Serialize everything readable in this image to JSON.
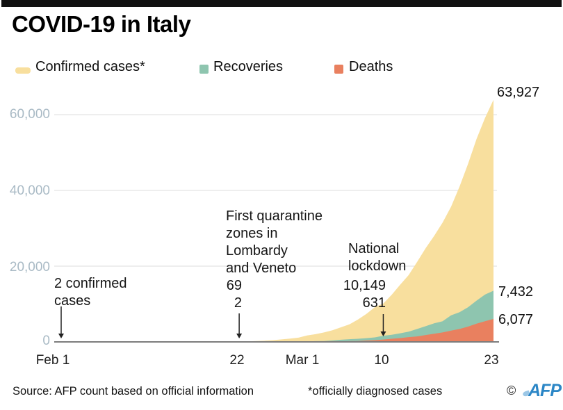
{
  "header": {
    "title": "COVID-19 in Italy"
  },
  "legend": {
    "confirmed": {
      "label": "Confirmed cases*",
      "color": "#f8df9e"
    },
    "recoveries": {
      "label": "Recoveries",
      "color": "#8ec5af"
    },
    "deaths": {
      "label": "Deaths",
      "color": "#e9805f"
    }
  },
  "y_axis": {
    "ticks": {
      "t60": "60,000",
      "t40": "40,000",
      "t20": "20,000",
      "t0": "0"
    }
  },
  "x_axis": {
    "ticks": {
      "feb1": "Feb 1",
      "feb22": "22",
      "mar1": "Mar 1",
      "mar10": "10",
      "mar23": "23"
    }
  },
  "annotations": [
    {
      "day": 0,
      "lines": {
        "l1": "2 confirmed",
        "l2": "cases"
      },
      "values": {}
    },
    {
      "day": 21,
      "lines": {
        "l1": "First quarantine",
        "l2": "zones in",
        "l3": "Lombardy",
        "l4": "and Veneto"
      },
      "values": {
        "confirmed": "69",
        "deaths": "2"
      }
    },
    {
      "day": 38,
      "lines": {
        "l1": "National",
        "l2": "lockdown"
      },
      "values": {
        "confirmed": "10,149",
        "deaths": "631"
      }
    }
  ],
  "end_labels": {
    "confirmed": "63,927",
    "recoveries": "7,432",
    "deaths": "6,077"
  },
  "footer": {
    "source": "Source: AFP count based on official information",
    "note": "*officially diagnosed cases",
    "copyright": "©",
    "logo": "AFP"
  },
  "chart_data": {
    "type": "area",
    "title": "COVID-19 in Italy",
    "x_unit": "daily, Feb 1 2020 to Mar 23 2020",
    "x_tick_days": [
      0,
      21,
      29,
      38,
      51
    ],
    "x_tick_labels": [
      "Feb 1",
      "22",
      "Mar 1",
      "10",
      "23"
    ],
    "ylim": [
      0,
      65000
    ],
    "y_ticks": [
      0,
      20000,
      40000,
      60000
    ],
    "grid": true,
    "stacking": "deaths at bottom, recoveries stacked on deaths, confirmed cases drawn as total envelope",
    "series": [
      {
        "name": "Confirmed cases*",
        "color": "#f8df9e",
        "values": [
          2,
          2,
          2,
          2,
          2,
          3,
          3,
          3,
          3,
          3,
          3,
          3,
          3,
          3,
          3,
          3,
          3,
          3,
          3,
          4,
          21,
          69,
          152,
          229,
          322,
          453,
          655,
          888,
          1128,
          1694,
          2036,
          2502,
          3089,
          3858,
          4636,
          5883,
          7375,
          9172,
          10149,
          12462,
          15113,
          17660,
          21157,
          24747,
          27980,
          31506,
          35713,
          41035,
          47021,
          53578,
          59138,
          63927
        ]
      },
      {
        "name": "Recoveries",
        "color": "#8ec5af",
        "values": [
          0,
          0,
          0,
          0,
          0,
          0,
          0,
          0,
          0,
          0,
          0,
          0,
          0,
          0,
          0,
          0,
          0,
          0,
          0,
          0,
          0,
          1,
          1,
          1,
          1,
          3,
          45,
          46,
          50,
          83,
          149,
          160,
          276,
          414,
          523,
          589,
          622,
          724,
          1004,
          1045,
          1258,
          1439,
          1966,
          2335,
          2749,
          2941,
          4025,
          4440,
          5129,
          6072,
          7024,
          7432
        ]
      },
      {
        "name": "Deaths",
        "color": "#e9805f",
        "values": [
          0,
          0,
          0,
          0,
          0,
          0,
          0,
          0,
          0,
          0,
          0,
          0,
          0,
          0,
          0,
          0,
          0,
          0,
          0,
          0,
          0,
          2,
          3,
          7,
          10,
          12,
          17,
          21,
          29,
          34,
          52,
          79,
          107,
          148,
          197,
          233,
          366,
          463,
          631,
          827,
          1016,
          1266,
          1441,
          1809,
          2158,
          2503,
          2978,
          3405,
          4032,
          4825,
          5476,
          6077
        ]
      }
    ],
    "annotated_points": [
      {
        "day": 0,
        "label": "2 confirmed cases"
      },
      {
        "day": 21,
        "label": "First quarantine zones in Lombardy and Veneto",
        "confirmed": 69,
        "deaths": 2
      },
      {
        "day": 38,
        "label": "National lockdown",
        "confirmed": 10149,
        "deaths": 631
      }
    ],
    "end_values": {
      "confirmed": 63927,
      "recoveries": 7432,
      "deaths": 6077
    }
  }
}
